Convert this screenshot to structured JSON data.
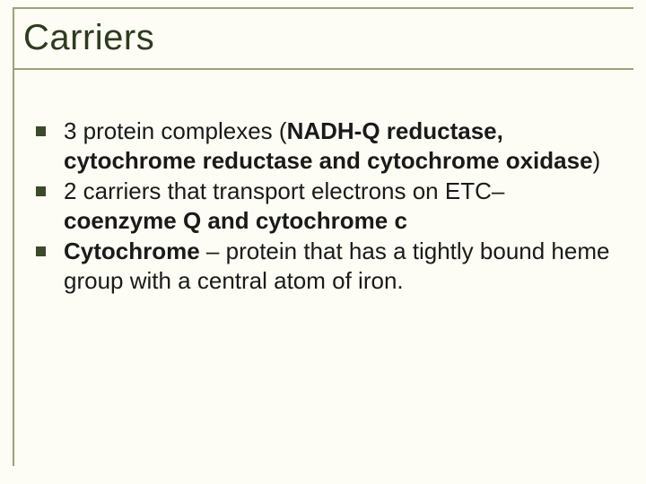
{
  "slide": {
    "title": "Carriers",
    "background_color": "#fdfdf5",
    "frame_color": "#9aa37a",
    "title_color": "#2e3b1f",
    "bullet_color": "#3b4a2a",
    "text_color": "#1a1a1a",
    "title_fontsize": 40,
    "body_fontsize": 26,
    "bullets": [
      {
        "runs": [
          {
            "text": "3 protein complexes (",
            "bold": false
          },
          {
            "text": "NADH-Q reductase, cytochrome reductase and cytochrome oxidase",
            "bold": true
          },
          {
            "text": ")",
            "bold": false
          }
        ]
      },
      {
        "runs": [
          {
            "text": "2 carriers that transport electrons on ETC– ",
            "bold": false
          },
          {
            "text": "coenzyme Q and cytochrome c",
            "bold": true
          }
        ]
      },
      {
        "runs": [
          {
            "text": "Cytochrome",
            "bold": true
          },
          {
            "text": " – protein that has a tightly bound heme group with a central atom of iron.",
            "bold": false
          }
        ]
      }
    ]
  }
}
